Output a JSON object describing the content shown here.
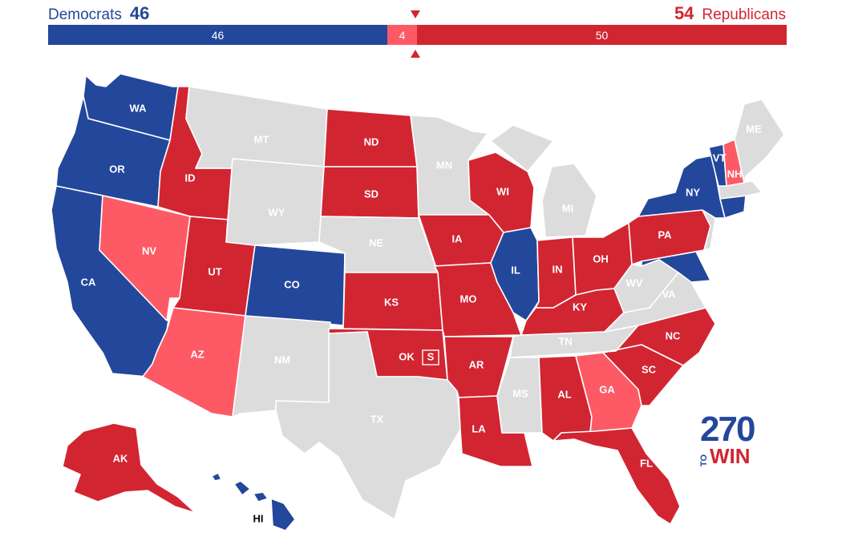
{
  "header": {
    "dem_name": "Democrats",
    "dem_total": "46",
    "rep_name": "Republicans",
    "rep_total": "54"
  },
  "bar": {
    "dem_value": "46",
    "tossup_value": "4",
    "rep_value": "50"
  },
  "colors": {
    "dem": "#23479b",
    "rep": "#d22532",
    "tossup": "#fd5a66",
    "none": "#dcdcdc"
  },
  "states": {
    "WA": "WA",
    "OR": "OR",
    "CA": "CA",
    "ID": "ID",
    "NV": "NV",
    "UT": "UT",
    "AZ": "AZ",
    "MT": "MT",
    "WY": "WY",
    "CO": "CO",
    "NM": "NM",
    "ND": "ND",
    "SD": "SD",
    "NE": "NE",
    "KS": "KS",
    "OK": "OK",
    "TX": "TX",
    "MN": "MN",
    "IA": "IA",
    "MO": "MO",
    "AR": "AR",
    "LA": "LA",
    "WI": "WI",
    "IL": "IL",
    "MI": "MI",
    "IN": "IN",
    "OH": "OH",
    "KY": "KY",
    "TN": "TN",
    "MS": "MS",
    "AL": "AL",
    "GA": "GA",
    "FL": "FL",
    "SC": "SC",
    "NC": "NC",
    "VA": "VA",
    "WV": "WV",
    "PA": "PA",
    "NY": "NY",
    "VT": "VT",
    "NH": "NH",
    "ME": "ME",
    "AK": "AK",
    "HI": "HI"
  },
  "special_marker": "S",
  "logo": {
    "num": "270",
    "to": "TO",
    "win": "WIN"
  }
}
